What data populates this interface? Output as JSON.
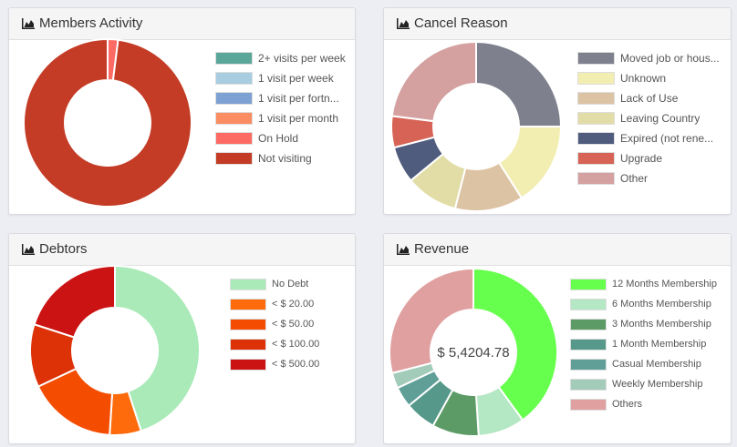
{
  "panels": [
    {
      "title": "Members Activity",
      "center_label": "",
      "items": [
        {
          "label": "2+ visits per week",
          "color": "#5aa79a",
          "value": 0
        },
        {
          "label": "1 visit per week",
          "color": "#a8cde0",
          "value": 0
        },
        {
          "label": "1 visit per fortn...",
          "color": "#7ea1d3",
          "value": 0
        },
        {
          "label": "1 visit per month",
          "color": "#fb8d62",
          "value": 0
        },
        {
          "label": "On Hold",
          "color": "#fe6b64",
          "value": 2
        },
        {
          "label": "Not visiting",
          "color": "#c43c25",
          "value": 98
        }
      ]
    },
    {
      "title": "Cancel Reason",
      "center_label": "",
      "items": [
        {
          "label": "Moved job or hous...",
          "color": "#7e808d",
          "value": 25
        },
        {
          "label": "Unknown",
          "color": "#f2eeb1",
          "value": 16
        },
        {
          "label": "Lack of Use",
          "color": "#dcc3a4",
          "value": 13
        },
        {
          "label": "Leaving Country",
          "color": "#e2dda7",
          "value": 10
        },
        {
          "label": "Expired (not rene...",
          "color": "#4f5c7e",
          "value": 7
        },
        {
          "label": "Upgrade",
          "color": "#d66355",
          "value": 6
        },
        {
          "label": "Other",
          "color": "#d4a0a0",
          "value": 23
        }
      ]
    },
    {
      "title": "Debtors",
      "center_label": "",
      "items": [
        {
          "label": "No Debt",
          "color": "#aaeab8",
          "value": 45
        },
        {
          "label": "< $ 20.00",
          "color": "#fd6b0c",
          "value": 6
        },
        {
          "label": "< $ 50.00",
          "color": "#f44d02",
          "value": 17
        },
        {
          "label": "< $ 100.00",
          "color": "#dd3108",
          "value": 12
        },
        {
          "label": "< $ 500.00",
          "color": "#cc1313",
          "value": 20
        }
      ]
    },
    {
      "title": "Revenue",
      "center_label": "$ 5,4204.78",
      "items": [
        {
          "label": "12 Months Membership",
          "color": "#66ff4d",
          "value": 40
        },
        {
          "label": "6 Months Membership",
          "color": "#b4e7c3",
          "value": 9
        },
        {
          "label": "3 Months Membership",
          "color": "#5c9b66",
          "value": 9
        },
        {
          "label": "1 Month Membership",
          "color": "#56988a",
          "value": 6
        },
        {
          "label": "Casual Membership",
          "color": "#5f9f98",
          "value": 4
        },
        {
          "label": "Weekly Membership",
          "color": "#a2cbb9",
          "value": 3
        },
        {
          "label": "Others",
          "color": "#e0a0a0",
          "value": 29
        }
      ]
    }
  ]
}
